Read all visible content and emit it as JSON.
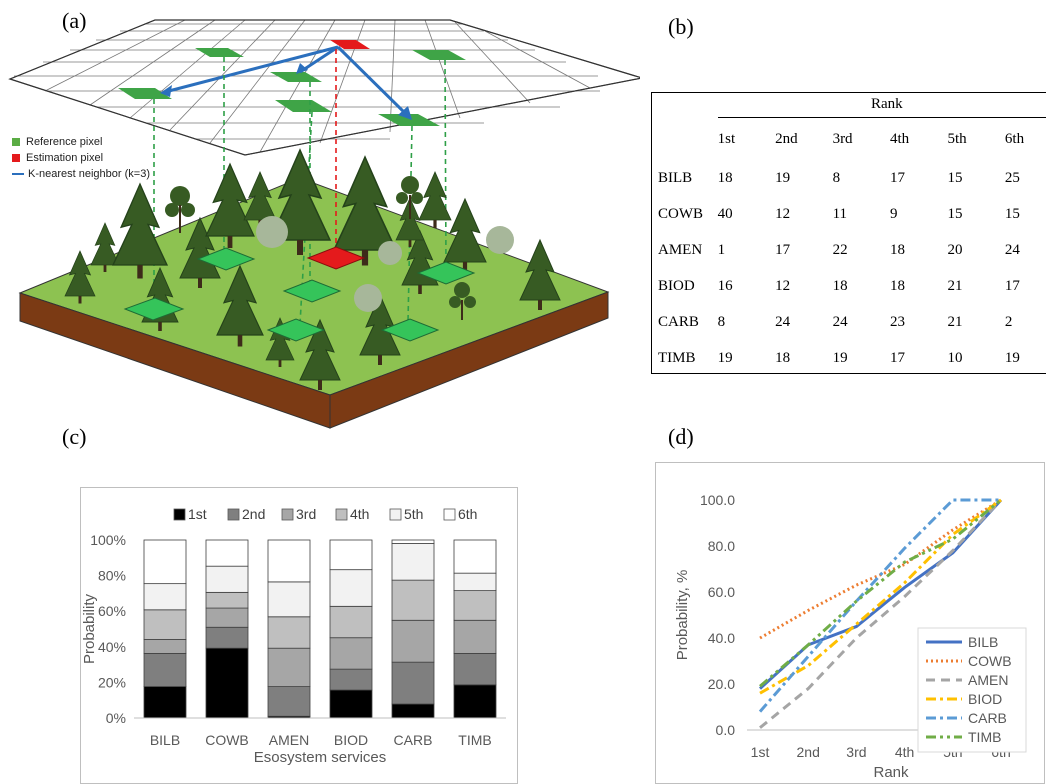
{
  "panels": {
    "a": "(a)",
    "b": "(b)",
    "c": "(c)",
    "d": "(d)"
  },
  "legend_a": {
    "items": [
      {
        "label": "Reference pixel",
        "color": "#5aac44"
      },
      {
        "label": "Estimation pixel",
        "color": "#e41a1c"
      },
      {
        "label": "K-nearest neighbor (k=3)",
        "color": "#2b6fbd"
      }
    ]
  },
  "table": {
    "header": "Rank",
    "columns": [
      "1st",
      "2nd",
      "3rd",
      "4th",
      "5th",
      "6th"
    ],
    "rows": [
      {
        "name": "BILB",
        "values": [
          "18",
          "19",
          "8",
          "17",
          "15",
          "25"
        ]
      },
      {
        "name": "COWB",
        "values": [
          "40",
          "12",
          "11",
          "9",
          "15",
          "15"
        ]
      },
      {
        "name": "AMEN",
        "values": [
          "1",
          "17",
          "22",
          "18",
          "20",
          "24"
        ]
      },
      {
        "name": "BIOD",
        "values": [
          "16",
          "12",
          "18",
          "18",
          "21",
          "17"
        ]
      },
      {
        "name": "CARB",
        "values": [
          "8",
          "24",
          "24",
          "23",
          "21",
          "2"
        ]
      },
      {
        "name": "TIMB",
        "values": [
          "19",
          "18",
          "19",
          "17",
          "10",
          "19"
        ]
      }
    ]
  },
  "chart_data": [
    {
      "type": "bar",
      "stacked": "percent",
      "categories": [
        "BILB",
        "COWB",
        "AMEN",
        "BIOD",
        "CARB",
        "TIMB"
      ],
      "series": [
        {
          "name": "1st",
          "color": "#000000",
          "values": [
            18,
            40,
            1,
            16,
            8,
            19
          ]
        },
        {
          "name": "2nd",
          "color": "#7f7f7f",
          "values": [
            19,
            12,
            17,
            12,
            24,
            18
          ]
        },
        {
          "name": "3rd",
          "color": "#a6a6a6",
          "values": [
            8,
            11,
            22,
            18,
            24,
            19
          ]
        },
        {
          "name": "4th",
          "color": "#bfbfbf",
          "values": [
            17,
            9,
            18,
            18,
            23,
            17
          ]
        },
        {
          "name": "5th",
          "color": "#f2f2f2",
          "values": [
            15,
            15,
            20,
            21,
            21,
            10
          ]
        },
        {
          "name": "6th",
          "color": "#ffffff",
          "values": [
            25,
            15,
            24,
            17,
            2,
            19
          ]
        }
      ],
      "xlabel": "Esosystem services",
      "ylabel": "Probability",
      "yticks": [
        "0%",
        "20%",
        "40%",
        "60%",
        "80%",
        "100%"
      ],
      "ylim": [
        0,
        100
      ],
      "legend": "top"
    },
    {
      "type": "line",
      "categories": [
        "1st",
        "2nd",
        "3rd",
        "4th",
        "5th",
        "6th"
      ],
      "series": [
        {
          "name": "BILB",
          "color": "#4472c4",
          "dash": "solid",
          "values": [
            18,
            37,
            45,
            62,
            77,
            100
          ]
        },
        {
          "name": "COWB",
          "color": "#ed7d31",
          "dash": "dot",
          "values": [
            40,
            52,
            63,
            72,
            87,
            100
          ]
        },
        {
          "name": "AMEN",
          "color": "#a5a5a5",
          "dash": "dash",
          "values": [
            1,
            18,
            40,
            58,
            78,
            100
          ]
        },
        {
          "name": "BIOD",
          "color": "#ffc000",
          "dash": "dashdot",
          "values": [
            16,
            28,
            46,
            64,
            85,
            100
          ]
        },
        {
          "name": "CARB",
          "color": "#5b9bd5",
          "dash": "dashdot",
          "values": [
            8,
            32,
            56,
            79,
            100,
            100
          ]
        },
        {
          "name": "TIMB",
          "color": "#70ad47",
          "dash": "dashdotdot",
          "values": [
            19,
            37,
            56,
            73,
            83,
            100
          ]
        }
      ],
      "xlabel": "Rank",
      "ylabel": "Probability, %",
      "yticks": [
        "0.0",
        "20.0",
        "40.0",
        "60.0",
        "80.0",
        "100.0"
      ],
      "ylim": [
        0,
        100
      ],
      "legend": "bottom-right"
    }
  ]
}
